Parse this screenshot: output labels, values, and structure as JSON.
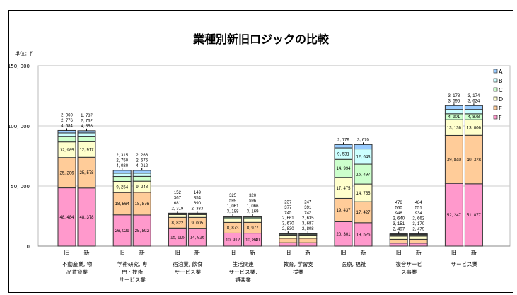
{
  "chart_data": {
    "type": "bar",
    "stacked": true,
    "title": "業種別新旧ロジックの比較",
    "unit_label": "単位：件",
    "ylim": [
      0,
      150000
    ],
    "yticks": [
      "0",
      "50, 000",
      "100, 000",
      "150, 000"
    ],
    "ytick_values": [
      0,
      50000,
      100000,
      150000
    ],
    "grid": true,
    "legend_position": "right",
    "bar_labels": [
      "旧",
      "新"
    ],
    "categories": [
      [
        "不動産業, 物",
        "品賃貸業"
      ],
      [
        "学術研究, 専",
        "門・技術",
        "サービス業"
      ],
      [
        "宿泊業, 飲食",
        "サービス業"
      ],
      [
        "生活関連",
        "サービス業,",
        "娯楽業"
      ],
      [
        "教育, 学習支",
        "援業"
      ],
      [
        "医療, 福祉"
      ],
      [
        "複合サービ",
        "ス事業"
      ],
      [
        "サービス業"
      ]
    ],
    "series_order_bottom_to_top": [
      "F",
      "E",
      "D",
      "C",
      "B",
      "A"
    ],
    "legend": [
      "A",
      "B",
      "C",
      "D",
      "E",
      "F"
    ],
    "colors": {
      "A": "#99ccff",
      "B": "#ccffff",
      "C": "#ccffcc",
      "D": "#ffffcc",
      "E": "#ffcc99",
      "F": "#ff99cc"
    },
    "values": [
      {
        "old": {
          "F": 48484,
          "E": 25206,
          "D": 12985,
          "C": 4684,
          "B": 2776,
          "A": 2060
        },
        "new": {
          "F": 48378,
          "E": 25578,
          "D": 12917,
          "C": 4556,
          "B": 2762,
          "A": 1787
        }
      },
      {
        "old": {
          "F": 26029,
          "E": 18564,
          "D": 9254,
          "C": 4080,
          "B": 2750,
          "A": 2315
        },
        "new": {
          "F": 25892,
          "E": 18876,
          "D": 9248,
          "C": 4012,
          "B": 2676,
          "A": 2266
        }
      },
      {
        "old": {
          "F": 15116,
          "E": 8822,
          "D": 2319,
          "C": 681,
          "B": 367,
          "A": 152
        },
        "new": {
          "F": 14926,
          "E": 9005,
          "D": 2333,
          "C": 690,
          "B": 354,
          "A": 149
        }
      },
      {
        "old": {
          "F": 10912,
          "E": 8873,
          "D": 3188,
          "C": 1061,
          "B": 599,
          "A": 325
        },
        "new": {
          "F": 10840,
          "E": 8977,
          "D": 3169,
          "C": 1066,
          "B": 596,
          "A": 320
        }
      },
      {
        "old": {
          "F": 2830,
          "E": 3670,
          "D": 2661,
          "C": 745,
          "B": 377,
          "A": 237
        },
        "new": {
          "F": 2808,
          "E": 3687,
          "D": 2635,
          "C": 742,
          "B": 391,
          "A": 247
        }
      },
      {
        "old": {
          "F": 20301,
          "E": 19437,
          "D": 17475,
          "C": 14994,
          "B": 9531,
          "A": 2779
        },
        "new": {
          "F": 19525,
          "E": 17427,
          "D": 14755,
          "C": 16497,
          "B": 12643,
          "A": 3670
        }
      },
      {
        "old": {
          "F": 2497,
          "E": 3151,
          "D": 2640,
          "C": 946,
          "B": 560,
          "A": 476
        },
        "new": {
          "F": 2479,
          "E": 3170,
          "D": 2662,
          "C": 934,
          "B": 551,
          "A": 484
        }
      },
      {
        "old": {
          "F": 52247,
          "E": 39840,
          "D": 13136,
          "C": 4901,
          "B": 3595,
          "A": 3178
        },
        "new": {
          "F": 51877,
          "E": 40328,
          "D": 13006,
          "C": 4878,
          "B": 3624,
          "A": 3174
        }
      }
    ]
  }
}
